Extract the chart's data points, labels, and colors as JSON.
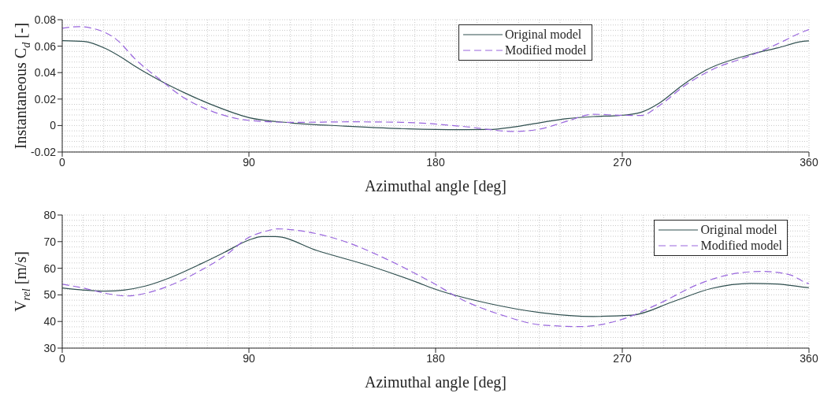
{
  "chart_data": [
    {
      "type": "line",
      "xlabel": "Azimuthal angle [deg]",
      "ylabel": "Instantaneous C$_{d}$ [-]",
      "xlim": [
        0,
        360
      ],
      "xticks": [
        0,
        90,
        180,
        270,
        360
      ],
      "ylim": [
        -0.02,
        0.08
      ],
      "yticks": [
        -0.02,
        0,
        0.02,
        0.04,
        0.06,
        0.08
      ],
      "grid": true,
      "legend": "top",
      "marker": "none",
      "series": [
        {
          "name": "Original model",
          "color": "#2f4f4f",
          "line_style": "solid",
          "x": [
            0,
            10.5,
            20.8,
            29.7,
            34.9,
            46.4,
            59,
            72,
            90,
            110.5,
            136,
            167,
            192.8,
            205.5,
            218,
            230.8,
            243.4,
            256,
            268.7,
            279,
            287.8,
            299,
            310.5,
            332,
            344.7,
            358.5,
            360
          ],
          "values": [
            0.0642,
            0.0636,
            0.0583,
            0.0504,
            0.045,
            0.0346,
            0.0247,
            0.0158,
            0.006,
            0.002,
            -0.0004,
            -0.0025,
            -0.0031,
            -0.003,
            -0.001,
            0.0023,
            0.0052,
            0.0068,
            0.0076,
            0.01,
            0.0169,
            0.0305,
            0.042,
            0.0538,
            0.0586,
            0.0639,
            0.064
          ]
        },
        {
          "name": "Modified model",
          "color": "#9966dd",
          "line_style": "dashed",
          "x": [
            0,
            8,
            15.6,
            26,
            36,
            46.4,
            59,
            72,
            85,
            97.7,
            110.5,
            140,
            167,
            192.8,
            218,
            230.8,
            243.4,
            256,
            268.7,
            279,
            287.8,
            300.4,
            313,
            332,
            344.7,
            358.5,
            360
          ],
          "values": [
            0.0735,
            0.0747,
            0.0731,
            0.0652,
            0.049,
            0.0356,
            0.0207,
            0.0109,
            0.005,
            0.003,
            0.0024,
            0.0028,
            0.0023,
            -0.0006,
            -0.0045,
            -0.0025,
            0.0033,
            0.0085,
            0.0078,
            0.0076,
            0.015,
            0.0305,
            0.042,
            0.053,
            0.0616,
            0.0717,
            0.0725
          ]
        }
      ]
    },
    {
      "type": "line",
      "xlabel": "Azimuthal angle [deg]",
      "ylabel": "V$_{rel}$ [m/s]",
      "xlim": [
        0,
        360
      ],
      "xticks": [
        0,
        90,
        180,
        270,
        360
      ],
      "ylim": [
        30,
        80
      ],
      "yticks": [
        30,
        40,
        50,
        60,
        70,
        80
      ],
      "grid": true,
      "legend": "top right",
      "marker": "none",
      "series": [
        {
          "name": "Original model",
          "color": "#2f4f4f",
          "line_style": "solid",
          "x": [
            0,
            10.5,
            20.8,
            29.7,
            40,
            52.8,
            65.6,
            78.5,
            90,
            96.4,
            102.8,
            123,
            149,
            170.5,
            179.6,
            205.5,
            231,
            256,
            275,
            294,
            313,
            332,
            344.7,
            358.5,
            360
          ],
          "values": [
            52.6,
            51.8,
            51.4,
            51.8,
            53.3,
            56.7,
            61.2,
            66.1,
            70.6,
            71.9,
            71.9,
            66.6,
            60.7,
            54.9,
            52.2,
            46.8,
            43.3,
            41.9,
            42.4,
            47.3,
            52.4,
            54.3,
            54.1,
            52.8,
            52.7
          ]
        },
        {
          "name": "Modified model",
          "color": "#9966dd",
          "line_style": "dashed",
          "x": [
            0,
            10.5,
            20.8,
            31,
            41.3,
            52.8,
            65.6,
            78.5,
            90,
            97.7,
            104,
            117,
            136,
            155.6,
            170.5,
            179.6,
            192.8,
            212,
            231,
            250,
            269,
            288,
            307,
            326,
            338,
            351,
            358.5,
            360
          ],
          "values": [
            54,
            52.5,
            50.6,
            49.6,
            50.8,
            53.8,
            58.7,
            64.7,
            71.6,
            73.8,
            74.8,
            73.8,
            70.1,
            63.7,
            57.9,
            54.1,
            48.2,
            42.4,
            38.7,
            38.1,
            40.6,
            46.8,
            54.1,
            58.2,
            58.8,
            57.5,
            54.6,
            54.2
          ]
        }
      ]
    }
  ]
}
